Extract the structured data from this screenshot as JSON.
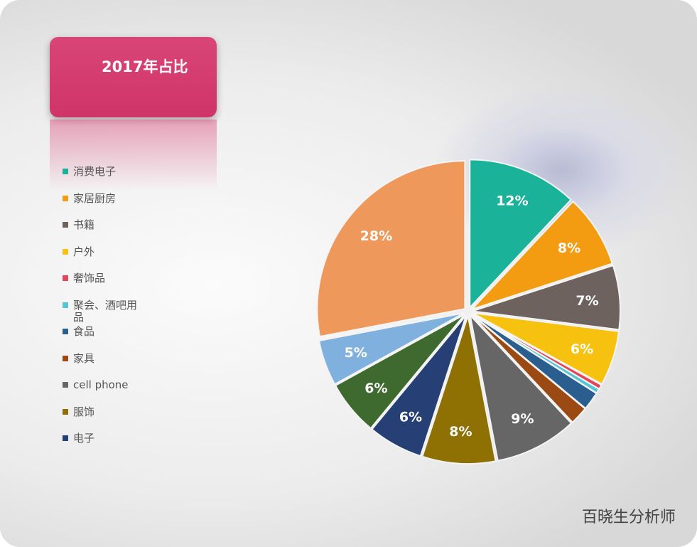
{
  "chart_data": {
    "type": "pie",
    "title": "2017年占比",
    "categories": [
      "消费电子",
      "家居厨房",
      "书籍",
      "户外",
      "奢饰品",
      "聚会、酒吧用品",
      "食品",
      "家具",
      "cell phone",
      "服饰",
      "电子",
      null,
      null,
      null
    ],
    "values": [
      12,
      8,
      7,
      6,
      0.5,
      0.5,
      2,
      2,
      9,
      8,
      6,
      6,
      5,
      28
    ],
    "value_labels": [
      "12%",
      "8%",
      "7%",
      "6%",
      null,
      null,
      null,
      null,
      "9%",
      "8%",
      "6%",
      "6%",
      "5%",
      "28%"
    ],
    "colors": [
      "#1ab39a",
      "#f39c12",
      "#6e625f",
      "#f7c20f",
      "#e2465a",
      "#52c6d3",
      "#2a5e8e",
      "#9c4a14",
      "#666666",
      "#8e7102",
      "#263f74",
      "#3f6a2f",
      "#80b1de",
      "#ef985b"
    ],
    "legend": "left"
  },
  "watermark": "百晓生分析师"
}
